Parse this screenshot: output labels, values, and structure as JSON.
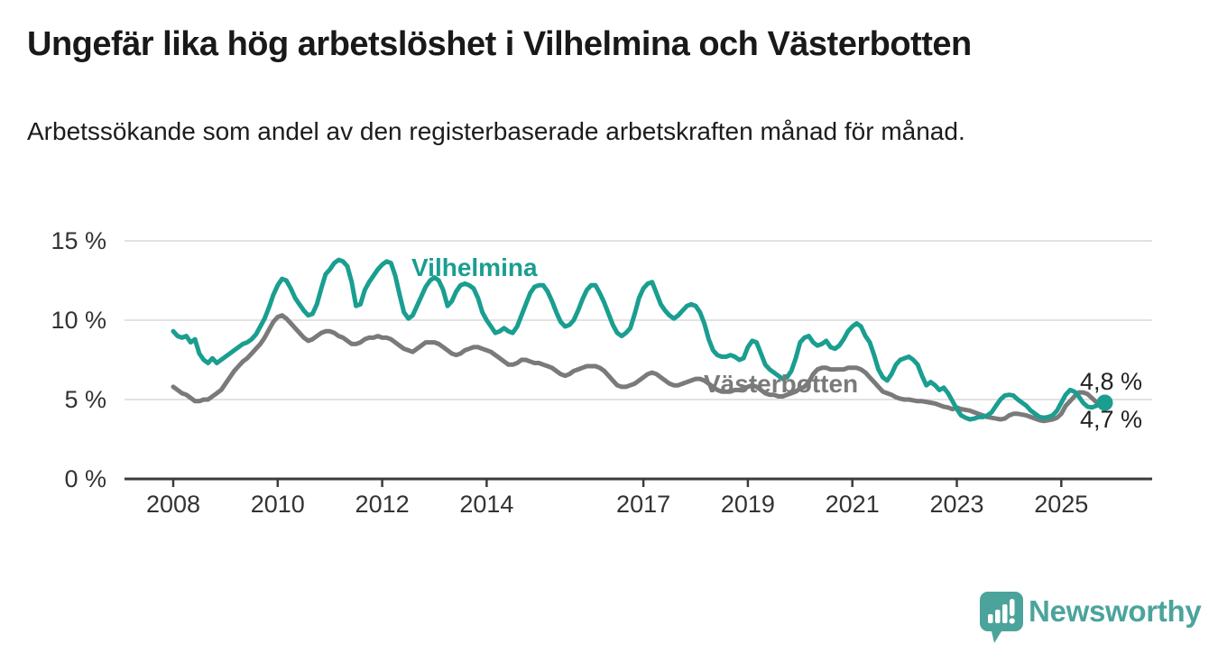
{
  "header": {
    "title": "Ungefär lika hög arbetslöshet i Vilhelmina och Västerbotten",
    "subtitle": "Arbetssökande som andel av den registerbaserade arbetskraften månad för månad."
  },
  "chart": {
    "y_ticks": [
      {
        "label": "0 %",
        "value": 0
      },
      {
        "label": "5 %",
        "value": 5
      },
      {
        "label": "10 %",
        "value": 10
      },
      {
        "label": "15 %",
        "value": 15
      }
    ],
    "x_ticks": [
      {
        "label": "2008",
        "year": 2008
      },
      {
        "label": "2010",
        "year": 2010
      },
      {
        "label": "2012",
        "year": 2012
      },
      {
        "label": "2014",
        "year": 2014
      },
      {
        "label": "2017",
        "year": 2017
      },
      {
        "label": "2019",
        "year": 2019
      },
      {
        "label": "2021",
        "year": 2021
      },
      {
        "label": "2023",
        "year": 2023
      },
      {
        "label": "2025",
        "year": 2025
      }
    ],
    "series_labels": {
      "vilhelmina": "Vilhelmina",
      "vasterbotten": "Västerbotten"
    },
    "end_labels": {
      "vilhelmina": "4,8 %",
      "vasterbotten": "4,7 %"
    },
    "colors": {
      "vilhelmina": "#1a9e90",
      "vasterbotten": "#7a7a7a",
      "grid": "#d8d8d8",
      "axis": "#3b3b3b",
      "logo": "#4ba49c"
    }
  },
  "chart_data": {
    "type": "line",
    "unit": "percent",
    "frequency": "monthly",
    "x_start": "2008-01",
    "x_end": "2025-11",
    "ylim": [
      0,
      15
    ],
    "yticks": [
      0,
      5,
      10,
      15
    ],
    "xticks": [
      2008,
      2010,
      2012,
      2014,
      2017,
      2019,
      2021,
      2023,
      2025
    ],
    "grid": "horizontal-only",
    "legend_position": "inline-labels",
    "series": [
      {
        "name": "Vilhelmina",
        "color": "#1a9e90",
        "end_label": "4,8 %",
        "last_value": 4.8,
        "values": [
          9.3,
          9.0,
          8.9,
          9.0,
          8.6,
          8.8,
          7.9,
          7.5,
          7.3,
          7.6,
          7.3,
          7.5,
          7.7,
          7.9,
          8.1,
          8.3,
          8.5,
          8.6,
          8.8,
          9.1,
          9.6,
          10.1,
          10.8,
          11.6,
          12.2,
          12.6,
          12.5,
          12.0,
          11.4,
          11.0,
          10.6,
          10.3,
          10.4,
          11.0,
          12.0,
          12.9,
          13.2,
          13.6,
          13.8,
          13.7,
          13.4,
          12.4,
          10.9,
          11.0,
          11.9,
          12.4,
          12.8,
          13.2,
          13.5,
          13.7,
          13.6,
          12.8,
          11.6,
          10.5,
          10.1,
          10.3,
          10.9,
          11.5,
          12.1,
          12.5,
          12.7,
          12.5,
          11.9,
          10.9,
          11.2,
          11.8,
          12.2,
          12.3,
          12.2,
          12.0,
          11.4,
          10.5,
          10.0,
          9.6,
          9.2,
          9.3,
          9.5,
          9.3,
          9.2,
          9.6,
          10.3,
          11.0,
          11.7,
          12.1,
          12.2,
          12.2,
          11.8,
          11.2,
          10.5,
          9.9,
          9.6,
          9.7,
          10.0,
          10.6,
          11.3,
          11.9,
          12.2,
          12.2,
          11.7,
          11.1,
          10.4,
          9.7,
          9.2,
          9.0,
          9.2,
          9.5,
          10.4,
          11.4,
          12.0,
          12.3,
          12.4,
          11.7,
          11.0,
          10.6,
          10.3,
          10.1,
          10.3,
          10.6,
          10.9,
          11.0,
          10.9,
          10.5,
          9.8,
          8.8,
          8.1,
          7.8,
          7.7,
          7.7,
          7.8,
          7.7,
          7.5,
          7.6,
          8.3,
          8.7,
          8.6,
          7.9,
          7.2,
          6.9,
          6.7,
          6.5,
          6.3,
          6.4,
          6.8,
          7.6,
          8.6,
          8.9,
          9.0,
          8.6,
          8.4,
          8.5,
          8.7,
          8.3,
          8.2,
          8.4,
          8.8,
          9.3,
          9.6,
          9.8,
          9.6,
          9.0,
          8.6,
          7.8,
          6.9,
          6.4,
          6.2,
          6.6,
          7.2,
          7.5,
          7.6,
          7.7,
          7.5,
          7.2,
          6.5,
          5.9,
          6.1,
          5.9,
          5.6,
          5.75,
          5.4,
          4.9,
          4.4,
          4.0,
          3.85,
          3.75,
          3.8,
          3.9,
          3.9,
          4.0,
          4.2,
          4.6,
          5.0,
          5.25,
          5.3,
          5.25,
          5.0,
          4.8,
          4.6,
          4.3,
          4.1,
          3.9,
          3.85,
          3.9,
          4.0,
          4.3,
          4.8,
          5.3,
          5.6,
          5.5,
          5.2,
          4.8,
          4.55,
          4.5,
          4.6,
          4.75,
          4.8
        ]
      },
      {
        "name": "Västerbotten",
        "color": "#7a7a7a",
        "end_label": "4,7 %",
        "last_value": 4.7,
        "values": [
          5.8,
          5.6,
          5.4,
          5.3,
          5.1,
          4.9,
          4.9,
          5.0,
          5.0,
          5.2,
          5.4,
          5.6,
          6.0,
          6.4,
          6.8,
          7.1,
          7.4,
          7.6,
          7.9,
          8.2,
          8.5,
          8.9,
          9.4,
          9.9,
          10.2,
          10.3,
          10.1,
          9.8,
          9.5,
          9.2,
          8.9,
          8.7,
          8.8,
          9.0,
          9.2,
          9.3,
          9.3,
          9.2,
          9.0,
          8.9,
          8.7,
          8.5,
          8.5,
          8.6,
          8.8,
          8.9,
          8.9,
          9.0,
          8.9,
          8.9,
          8.8,
          8.6,
          8.4,
          8.2,
          8.1,
          8.0,
          8.2,
          8.4,
          8.6,
          8.6,
          8.6,
          8.5,
          8.3,
          8.1,
          7.9,
          7.8,
          7.9,
          8.1,
          8.2,
          8.3,
          8.3,
          8.2,
          8.1,
          8.0,
          7.8,
          7.6,
          7.4,
          7.2,
          7.2,
          7.3,
          7.5,
          7.5,
          7.4,
          7.3,
          7.3,
          7.2,
          7.1,
          7.0,
          6.8,
          6.6,
          6.5,
          6.6,
          6.8,
          6.9,
          7.0,
          7.1,
          7.1,
          7.1,
          7.0,
          6.8,
          6.5,
          6.2,
          5.9,
          5.8,
          5.8,
          5.9,
          6.0,
          6.2,
          6.4,
          6.6,
          6.7,
          6.6,
          6.4,
          6.2,
          6.0,
          5.9,
          5.9,
          6.0,
          6.1,
          6.2,
          6.3,
          6.3,
          6.2,
          6.0,
          5.8,
          5.6,
          5.5,
          5.5,
          5.5,
          5.6,
          5.6,
          5.7,
          5.8,
          5.9,
          5.8,
          5.6,
          5.4,
          5.3,
          5.3,
          5.2,
          5.2,
          5.3,
          5.4,
          5.5,
          5.7,
          5.8,
          6.1,
          6.6,
          6.9,
          7.0,
          7.0,
          6.9,
          6.9,
          6.9,
          6.9,
          7.0,
          7.0,
          7.0,
          6.9,
          6.7,
          6.4,
          6.1,
          5.8,
          5.5,
          5.4,
          5.3,
          5.15,
          5.05,
          5.0,
          5.0,
          4.95,
          4.9,
          4.9,
          4.85,
          4.8,
          4.75,
          4.65,
          4.55,
          4.5,
          4.4,
          4.5,
          4.4,
          4.35,
          4.3,
          4.2,
          4.1,
          4.0,
          3.9,
          3.85,
          3.8,
          3.75,
          3.8,
          4.0,
          4.1,
          4.1,
          4.05,
          4.0,
          3.9,
          3.8,
          3.7,
          3.65,
          3.7,
          3.75,
          3.85,
          4.1,
          4.6,
          4.9,
          5.2,
          5.45,
          5.45,
          5.35,
          5.1,
          4.85,
          4.75,
          4.7
        ]
      }
    ]
  },
  "footer": {
    "brand": "Newsworthy",
    "logo_icon": "speech-bubble-bar-chart-icon"
  }
}
